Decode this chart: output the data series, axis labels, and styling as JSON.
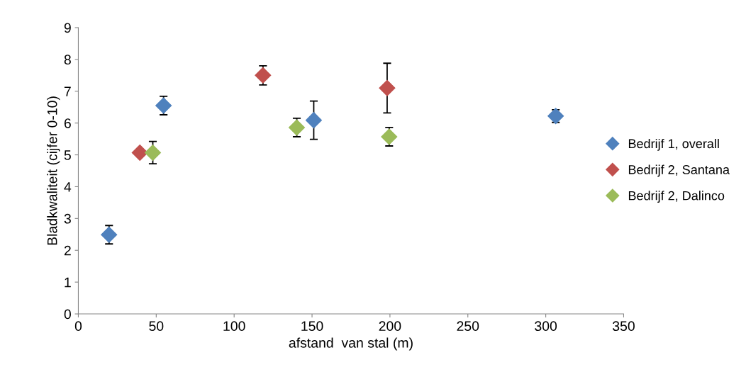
{
  "chart_data": {
    "type": "scatter",
    "xlabel": "afstand  van stal (m)",
    "ylabel": "Bladkwaliteit (cijfer 0-10)",
    "xlim": [
      0,
      350
    ],
    "xticks": [
      0,
      50,
      100,
      150,
      200,
      250,
      300,
      350
    ],
    "ylim": [
      0,
      9
    ],
    "yticks": [
      0,
      1,
      2,
      3,
      4,
      5,
      6,
      7,
      8,
      9
    ],
    "grid": false,
    "legend": "right",
    "marker": "diamond",
    "series": [
      {
        "name": "Bedrijf 1, overall",
        "color": "#4f81bd",
        "x": [
          19.7,
          54.7,
          151.1,
          306.4
        ],
        "values": [
          2.49,
          6.55,
          6.09,
          6.22
        ],
        "errors": [
          0.29,
          0.29,
          0.6,
          0.2
        ]
      },
      {
        "name": "Bedrijf 2, Santana",
        "color": "#c0504d",
        "x": [
          39.5,
          118.5,
          198.2
        ],
        "values": [
          5.07,
          7.5,
          7.1
        ],
        "errors": [
          null,
          0.3,
          0.78
        ]
      },
      {
        "name": "Bedrijf 2, Dalinco",
        "color": "#9bbb59",
        "x": [
          47.8,
          140.2,
          199.5
        ],
        "values": [
          5.07,
          5.86,
          5.57
        ],
        "errors": [
          0.35,
          0.29,
          0.29
        ]
      }
    ]
  }
}
